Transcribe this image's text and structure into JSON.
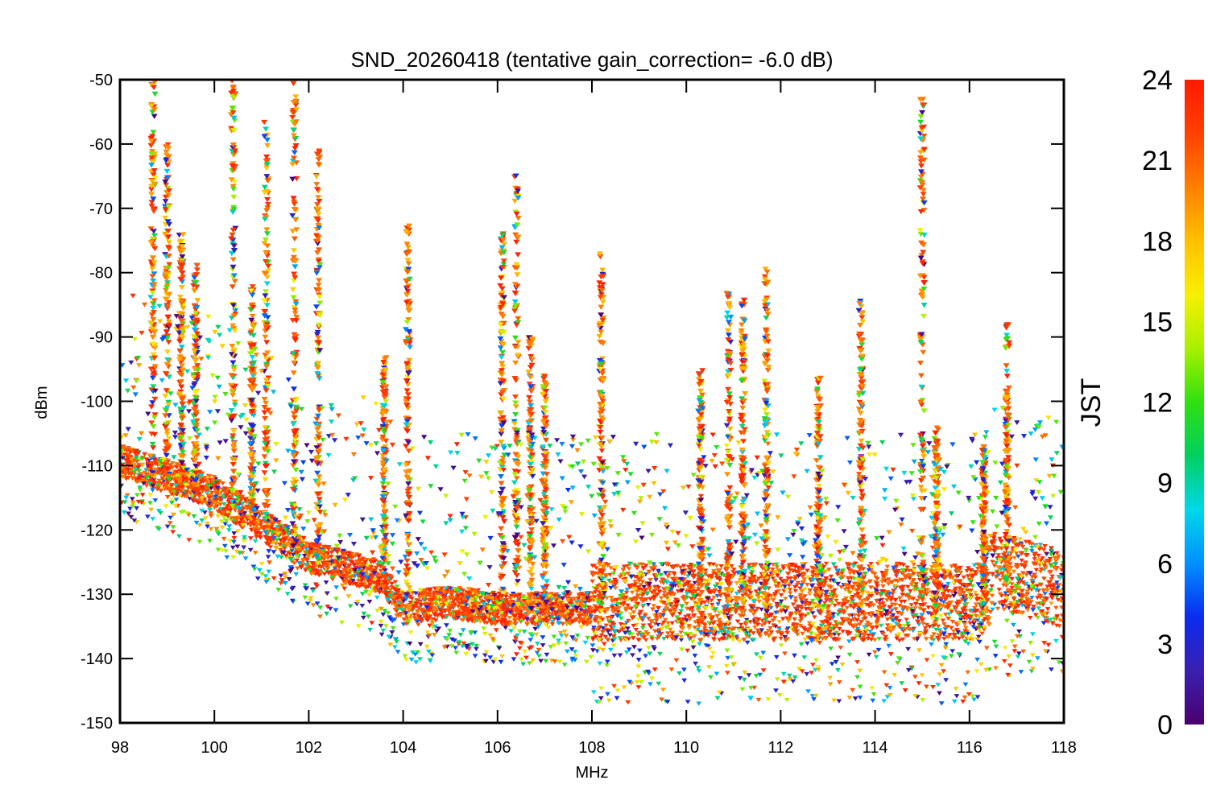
{
  "chart_data": {
    "type": "scatter",
    "title": "SND_20260418 (tentative gain_correction= -6.0 dB)",
    "xlabel": "MHz",
    "ylabel": "dBm",
    "xlim": [
      98,
      118
    ],
    "ylim": [
      -150,
      -50
    ],
    "xticks": [
      98,
      100,
      102,
      104,
      106,
      108,
      110,
      112,
      114,
      116,
      118
    ],
    "yticks": [
      -50,
      -60,
      -70,
      -80,
      -90,
      -100,
      -110,
      -120,
      -130,
      -140,
      -150
    ],
    "grid": false,
    "marker": "triangle-down",
    "color_scale": {
      "label": "JST",
      "range": [
        0,
        24
      ],
      "ticks": [
        24,
        21,
        18,
        15,
        12,
        9,
        6,
        3,
        0
      ],
      "colormap": "rainbow",
      "stops": [
        "#4b006e",
        "#3a1fb0",
        "#0a2cf0",
        "#0090ff",
        "#00d8e8",
        "#00d060",
        "#30e010",
        "#a8f000",
        "#f8f000",
        "#ffc000",
        "#ff8000",
        "#ff4000",
        "#ff1a00"
      ]
    },
    "noise_floor": [
      {
        "x": 98.0,
        "y": -110
      },
      {
        "x": 100.0,
        "y": -115
      },
      {
        "x": 102.0,
        "y": -125
      },
      {
        "x": 103.5,
        "y": -128
      },
      {
        "x": 104.0,
        "y": -133
      },
      {
        "x": 105.0,
        "y": -132
      },
      {
        "x": 106.0,
        "y": -133
      },
      {
        "x": 107.5,
        "y": -133
      },
      {
        "x": 108.0,
        "y": -133
      },
      {
        "x": 116.3,
        "y": -133
      },
      {
        "x": 116.5,
        "y": -128
      },
      {
        "x": 118.0,
        "y": -131
      }
    ],
    "peaks": [
      {
        "x": 98.7,
        "y": -50
      },
      {
        "x": 99.0,
        "y": -60
      },
      {
        "x": 99.3,
        "y": -74
      },
      {
        "x": 99.6,
        "y": -78
      },
      {
        "x": 100.4,
        "y": -50
      },
      {
        "x": 100.8,
        "y": -82
      },
      {
        "x": 101.1,
        "y": -56
      },
      {
        "x": 101.7,
        "y": -50
      },
      {
        "x": 102.2,
        "y": -60
      },
      {
        "x": 103.6,
        "y": -93
      },
      {
        "x": 104.1,
        "y": -72
      },
      {
        "x": 106.1,
        "y": -72
      },
      {
        "x": 106.4,
        "y": -64
      },
      {
        "x": 106.7,
        "y": -90
      },
      {
        "x": 107.0,
        "y": -96
      },
      {
        "x": 108.2,
        "y": -77
      },
      {
        "x": 110.3,
        "y": -95
      },
      {
        "x": 110.9,
        "y": -83
      },
      {
        "x": 111.2,
        "y": -84
      },
      {
        "x": 111.7,
        "y": -78
      },
      {
        "x": 112.8,
        "y": -96
      },
      {
        "x": 113.7,
        "y": -84
      },
      {
        "x": 115.0,
        "y": -53
      },
      {
        "x": 115.3,
        "y": -104
      },
      {
        "x": 116.3,
        "y": -107
      },
      {
        "x": 116.8,
        "y": -88
      }
    ]
  }
}
